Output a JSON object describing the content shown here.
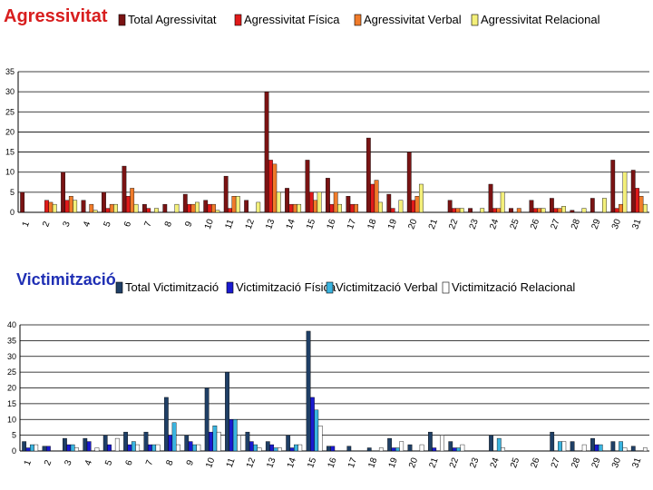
{
  "chart_data": [
    {
      "type": "bar",
      "title": "Agressivitat",
      "categories": [
        "1",
        "2",
        "3",
        "4",
        "5",
        "6",
        "7",
        "8",
        "9",
        "10",
        "11",
        "12",
        "13",
        "14",
        "15",
        "16",
        "17",
        "18",
        "19",
        "20",
        "21",
        "22",
        "23",
        "24",
        "25",
        "26",
        "27",
        "28",
        "29",
        "30",
        "31"
      ],
      "ylim": [
        0,
        35
      ],
      "yticks": [
        0,
        5,
        10,
        15,
        20,
        25,
        30,
        35
      ],
      "grid": true,
      "legend_position": "top",
      "series": [
        {
          "name": "Total Agressivitat",
          "color": "#7a1313",
          "values": [
            5,
            0,
            10,
            3,
            5,
            11.5,
            2,
            2,
            4.5,
            3,
            9,
            3,
            30,
            6,
            13,
            8.5,
            4,
            18.5,
            4.5,
            15,
            0,
            3,
            1,
            7,
            1,
            3,
            3.5,
            0.5,
            3.5,
            13,
            10.5
          ]
        },
        {
          "name": "Agressivitat Física",
          "color": "#e01a1a",
          "values": [
            0,
            3,
            3,
            0,
            1,
            4,
            1,
            0,
            2,
            2,
            1,
            0,
            13,
            2,
            5,
            2,
            2,
            7,
            1,
            3,
            0,
            1,
            0,
            1,
            0,
            1,
            1,
            0,
            0,
            1,
            6
          ]
        },
        {
          "name": "Agressivitat Verbal",
          "color": "#f07b2a",
          "values": [
            0,
            2.5,
            4,
            2,
            2,
            6,
            0,
            0,
            2,
            2,
            4,
            0,
            12,
            2,
            3,
            5,
            2,
            8,
            0,
            4,
            0,
            1,
            0,
            1,
            1,
            1,
            1,
            0,
            0,
            2,
            4
          ]
        },
        {
          "name": "Agressivitat Relacional",
          "color": "#f4f07a",
          "values": [
            0,
            2,
            3,
            0.5,
            2,
            2,
            1,
            2,
            2.5,
            0.5,
            4,
            2.5,
            5,
            2,
            5,
            2,
            0,
            2.5,
            3,
            7,
            0,
            1,
            1,
            5,
            0,
            1,
            1.5,
            1,
            3.5,
            10,
            2
          ]
        }
      ]
    },
    {
      "type": "bar",
      "title": "Victimització",
      "categories": [
        "1",
        "2",
        "3",
        "4",
        "5",
        "6",
        "7",
        "8",
        "9",
        "10",
        "11",
        "12",
        "13",
        "14",
        "15",
        "16",
        "17",
        "18",
        "19",
        "20",
        "21",
        "22",
        "23",
        "24",
        "25",
        "26",
        "27",
        "28",
        "29",
        "30",
        "31"
      ],
      "ylim": [
        0,
        40
      ],
      "yticks": [
        0,
        5,
        10,
        15,
        20,
        25,
        30,
        35,
        40
      ],
      "grid": true,
      "legend_position": "top",
      "series": [
        {
          "name": "Total Victimització",
          "color": "#1f3f66",
          "values": [
            3,
            1.5,
            4,
            4,
            5,
            6,
            6,
            17,
            5,
            20,
            25,
            6,
            3,
            5,
            38,
            1.5,
            1.5,
            1,
            4,
            2,
            6,
            3,
            0,
            5,
            0,
            0,
            6,
            3,
            4,
            3,
            1.5
          ]
        },
        {
          "name": "Victimització Física",
          "color": "#1a1ad0",
          "values": [
            1,
            1.5,
            2,
            3,
            2,
            2,
            2,
            5,
            3,
            6,
            10,
            3,
            2,
            1,
            17,
            1.5,
            0,
            0,
            1,
            0,
            1,
            1,
            0,
            0,
            0,
            0,
            0,
            0,
            2,
            0,
            0
          ]
        },
        {
          "name": "Victimització Verbal",
          "color": "#3ab4e0",
          "values": [
            2,
            0,
            2,
            0,
            0,
            3,
            2,
            9,
            2,
            8,
            10,
            2,
            1,
            2,
            13,
            0,
            0,
            0,
            1,
            0,
            0,
            1,
            0,
            4,
            0,
            0,
            3,
            0,
            2,
            3,
            0
          ]
        },
        {
          "name": "Victimització Relacional",
          "color": "#ffffff",
          "values": [
            2,
            0,
            1,
            1,
            4,
            2,
            2,
            2,
            2,
            6,
            5,
            1,
            1,
            2,
            8,
            0,
            0,
            1,
            3,
            2,
            5,
            2,
            0,
            1,
            0,
            0,
            3,
            2,
            0,
            1,
            1
          ]
        }
      ]
    }
  ]
}
